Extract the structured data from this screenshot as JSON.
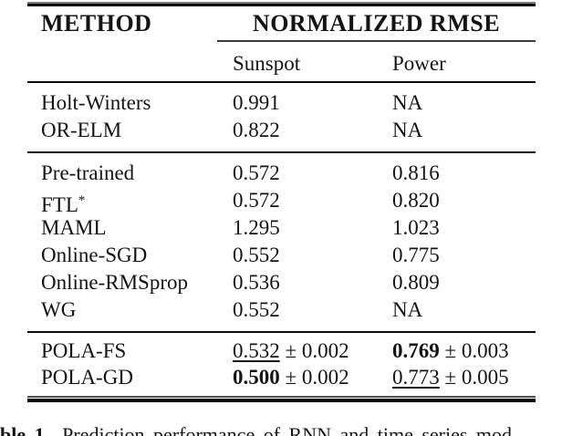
{
  "header": {
    "method": "METHOD",
    "group": "NORMALIZED RMSE",
    "subcol_1": "Sunspot",
    "subcol_2": "Power"
  },
  "rows": {
    "s1": [
      {
        "method": "Holt-Winters",
        "sunspot": "0.991",
        "power": "NA"
      },
      {
        "method": "OR-ELM",
        "sunspot": "0.822",
        "power": "NA"
      }
    ],
    "s2": [
      {
        "method": "Pre-trained",
        "sunspot": "0.572",
        "power": "0.816"
      },
      {
        "method": "FTL",
        "sup": "*",
        "sunspot": "0.572",
        "power": "0.820"
      },
      {
        "method": "MAML",
        "sunspot": "1.295",
        "power": "1.023"
      },
      {
        "method": "Online-SGD",
        "sunspot": "0.552",
        "power": "0.775"
      },
      {
        "method": "Online-RMSprop",
        "sunspot": "0.536",
        "power": "0.809"
      },
      {
        "method": "WG",
        "sunspot": "0.552",
        "power": "NA"
      }
    ],
    "s3": [
      {
        "method": "POLA-FS",
        "sunspot": "0.532",
        "sunspot_pm": "± 0.002",
        "power": "0.769",
        "power_pm": "± 0.003"
      },
      {
        "method": "POLA-GD",
        "sunspot": "0.500",
        "sunspot_pm": "± 0.002",
        "power": "0.773",
        "power_pm": "± 0.005"
      }
    ]
  },
  "caption": {
    "label": "ble 1.",
    "text": "Prediction performance of RNN and time series mod"
  },
  "colors": {
    "text": "#141414",
    "rule": "#000000",
    "background": "#ffffff"
  }
}
